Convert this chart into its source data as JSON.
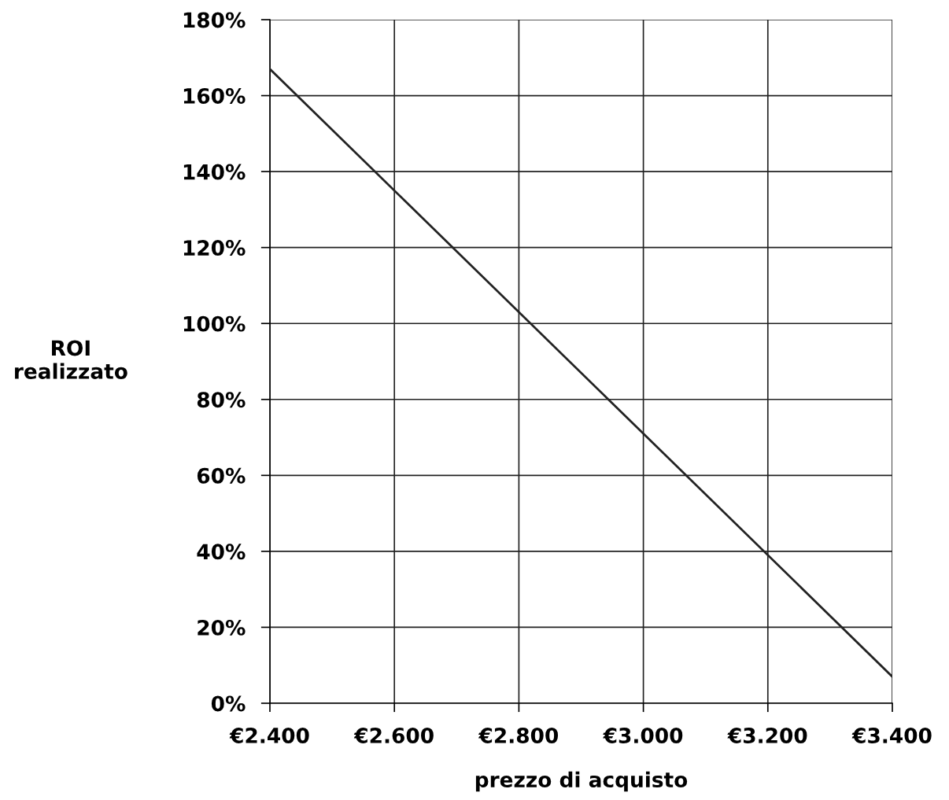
{
  "chart_data": {
    "type": "line",
    "xlabel": "prezzo di acquisto",
    "ylabel": "ROI\nrealizzato",
    "x": [
      2400,
      3400
    ],
    "series": [
      {
        "color": "#222222",
        "values": [
          167,
          7
        ]
      }
    ],
    "xlim": [
      2400,
      3400
    ],
    "ylim": [
      0,
      180
    ],
    "xticks": [
      {
        "value": 2400,
        "label": "€2.400"
      },
      {
        "value": 2600,
        "label": "€2.600"
      },
      {
        "value": 2800,
        "label": "€2.800"
      },
      {
        "value": 3000,
        "label": "€3.000"
      },
      {
        "value": 3200,
        "label": "€3.200"
      },
      {
        "value": 3400,
        "label": "€3.400"
      }
    ],
    "yticks": [
      {
        "value": 0,
        "label": "0%"
      },
      {
        "value": 20,
        "label": "20%"
      },
      {
        "value": 40,
        "label": "40%"
      },
      {
        "value": 60,
        "label": "60%"
      },
      {
        "value": 80,
        "label": "80%"
      },
      {
        "value": 100,
        "label": "100%"
      },
      {
        "value": 120,
        "label": "120%"
      },
      {
        "value": 140,
        "label": "140%"
      },
      {
        "value": 160,
        "label": "160%"
      },
      {
        "value": 180,
        "label": "180%"
      }
    ],
    "grid": true,
    "marker": "none",
    "line_style": "solid"
  }
}
